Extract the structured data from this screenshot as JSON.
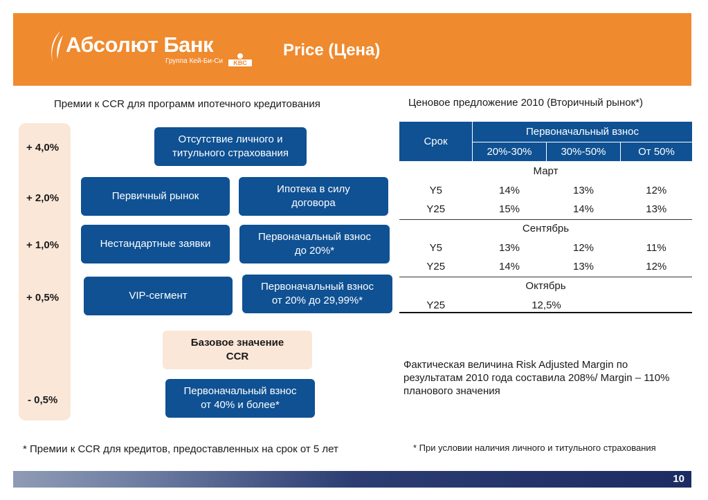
{
  "header": {
    "logo_name": "Абсолют Банк",
    "logo_sub": "Группа Кей-Би-Си",
    "logo_kbc": "KBC",
    "title": "Price (Цена)",
    "color": "#ef8a2e"
  },
  "left": {
    "heading": "Премии к CCR для программ ипотечного кредитования",
    "premiums": [
      "+ 4,0%",
      "+ 2,0%",
      "+ 1,0%",
      "+ 0,5%",
      "- 0,5%"
    ],
    "boxes": {
      "no_insurance": "Отсутствие личного и\nтитульного страхования",
      "primary_market": "Первичный рынок",
      "mortgage_by_law": "Ипотека в силу\nдоговора",
      "nonstandard": "Нестандартные заявки",
      "down_payment_20": "Первоначальный взнос\nдо 20%*",
      "vip": "VIP-сегмент",
      "down_payment_20_2999": "Первоначальный взнос\nот 20% до 29,99%*",
      "base": "Базовое значение\nCCR",
      "down_payment_40": "Первоначальный взнос\nот  40% и более*"
    },
    "box_color": "#0f5193"
  },
  "right": {
    "heading": "Ценовое предложение 2010 (Вторичный рынок*)",
    "table": {
      "col_term": "Срок",
      "col_down": "Первоначальный взнос",
      "sub_cols": [
        "20%-30%",
        "30%-50%",
        "От 50%"
      ],
      "groups": [
        {
          "month": "Март",
          "rows": [
            {
              "term": "Y5",
              "values": [
                "14%",
                "13%",
                "12%"
              ]
            },
            {
              "term": "Y25",
              "values": [
                "15%",
                "14%",
                "13%"
              ]
            }
          ]
        },
        {
          "month": "Сентябрь",
          "rows": [
            {
              "term": "Y5",
              "values": [
                "13%",
                "12%",
                "11%"
              ]
            },
            {
              "term": "Y25",
              "values": [
                "14%",
                "13%",
                "12%"
              ]
            }
          ]
        },
        {
          "month": "Октябрь",
          "rows": [
            {
              "term": "Y25",
              "merged_value": "12,5%"
            }
          ]
        }
      ]
    },
    "risk_note": "Фактическая величина Risk Adjusted Margin по результатам 2010 года составила 208%/ Margin – 110% планового значения"
  },
  "footnotes": {
    "left": "* Премии к CCR для кредитов, предоставленных на срок от 5 лет",
    "right": "* При условии наличия личного и титульного страхования"
  },
  "page_number": "10"
}
